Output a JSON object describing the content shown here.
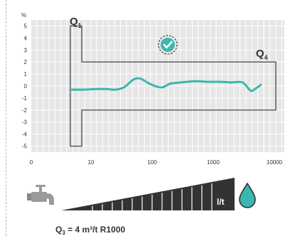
{
  "chart_data": {
    "type": "line",
    "ylabel": "%",
    "y_ticks": [
      "5",
      "4",
      "3",
      "2",
      "1",
      "0",
      "-1",
      "-2",
      "-3",
      "-4",
      "-5"
    ],
    "x_ticks": [
      "0",
      "10",
      "100",
      "1000",
      "10000"
    ],
    "ylim": [
      -5.5,
      5.5
    ],
    "x_scale": "log",
    "grid": true,
    "error_envelope": {
      "q1_limit_percent": 5,
      "q4_limit_percent": 2,
      "lower_zone_x": [
        4.5,
        7
      ]
    },
    "series": [
      {
        "x": [
          4.5,
          6,
          8,
          12,
          18,
          25,
          35,
          50,
          65,
          90,
          120,
          150,
          200,
          300,
          500,
          800,
          1300,
          2000,
          3000,
          4000,
          4500,
          6000
        ],
        "y": [
          -0.3,
          -0.3,
          -0.3,
          -0.25,
          -0.25,
          -0.3,
          -0.1,
          0.55,
          0.6,
          0.2,
          -0.05,
          -0.1,
          0.2,
          0.3,
          0.4,
          0.35,
          0.35,
          0.3,
          0.3,
          -0.35,
          -0.35,
          0.1
        ]
      }
    ],
    "annotations": {
      "q1": {
        "main": "Q",
        "sub": "1"
      },
      "q4": {
        "main": "Q",
        "sub": "4"
      }
    },
    "colors": {
      "curve": "#3ab7ae",
      "grid_bg": "#e6e6e6",
      "grid_line": "#ffffff",
      "envelope": "#555555",
      "badge": "#3ab7ae",
      "wedge": "#333333"
    }
  },
  "footer": {
    "flow_unit": "l/t",
    "q3_text": "Q",
    "q3_sub": "3",
    "q3_value": " = 4 m³/t  R1000"
  },
  "icons": [
    "faucet-icon",
    "checkmark-badge-icon",
    "water-drop-icon"
  ]
}
